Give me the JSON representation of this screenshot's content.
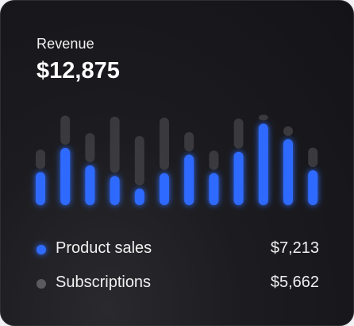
{
  "card": {
    "title": "Revenue",
    "total": "$12,875"
  },
  "colors": {
    "accent": "#2f6bff",
    "muted": "#3f3f44",
    "subscriptions_dot": "#5a5a5f"
  },
  "legend": [
    {
      "label": "Product sales",
      "value": "$7,213",
      "color": "#2f6bff"
    },
    {
      "label": "Subscriptions",
      "value": "$5,662",
      "color": "#5a5a5f"
    }
  ],
  "chart_data": {
    "type": "bar",
    "series": [
      {
        "name": "Product sales",
        "values": [
          0.34,
          0.59,
          0.41,
          0.3,
          0.17,
          0.33,
          0.52,
          0.33,
          0.55,
          0.84,
          0.68,
          0.36
        ]
      },
      {
        "name": "Subscriptions",
        "values": [
          0.2,
          0.3,
          0.3,
          0.58,
          0.51,
          0.54,
          0.2,
          0.2,
          0.31,
          0.06,
          0.1,
          0.2
        ]
      }
    ]
  }
}
